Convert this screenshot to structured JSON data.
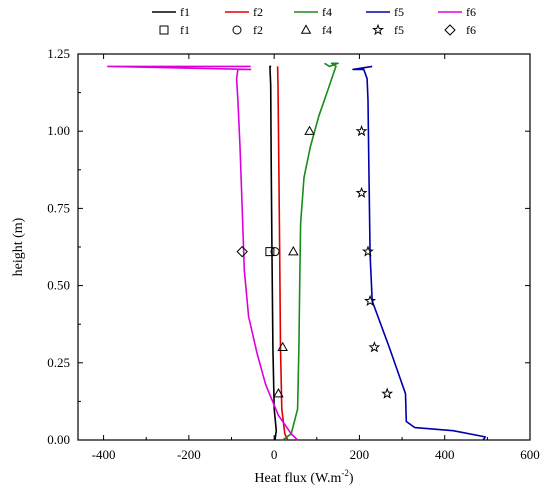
{
  "chart_data": {
    "type": "line",
    "xlabel": "Heat flux (W.m",
    "xlabel_superscript": "-2",
    "xlabel_suffix": ")",
    "ylabel": "height (m)",
    "xlim": [
      -460,
      600
    ],
    "ylim": [
      0,
      1.25
    ],
    "x_ticks": [
      -400,
      -200,
      0,
      200,
      400,
      600
    ],
    "x_tick_labels": [
      "-400",
      "-200",
      "0",
      "200",
      "400",
      "600"
    ],
    "y_ticks": [
      0,
      0.25,
      0.5,
      0.75,
      1.0,
      1.25
    ],
    "y_tick_labels": [
      "0.00",
      "0.25",
      "0.50",
      "0.75",
      "1.00",
      "1.25"
    ],
    "grid": false,
    "legend_placement": "top",
    "line_series": [
      {
        "name": "f1",
        "color": "#000000",
        "points": [
          [
            2,
            0
          ],
          [
            5,
            0.03
          ],
          [
            0,
            0.1
          ],
          [
            -3,
            0.3
          ],
          [
            -5,
            0.6
          ],
          [
            -7,
            0.9
          ],
          [
            -8,
            1.15
          ],
          [
            -10,
            1.21
          ],
          [
            -7,
            1.21
          ]
        ]
      },
      {
        "name": "f2",
        "color": "#dd0000",
        "points": [
          [
            32,
            0
          ],
          [
            25,
            0.02
          ],
          [
            18,
            0.1
          ],
          [
            15,
            0.3
          ],
          [
            13,
            0.6
          ],
          [
            11,
            0.9
          ],
          [
            9,
            1.15
          ],
          [
            8,
            1.21
          ]
        ]
      },
      {
        "name": "f4",
        "color": "#1a8a1a",
        "points": [
          [
            20,
            0.0
          ],
          [
            40,
            0.02
          ],
          [
            55,
            0.1
          ],
          [
            58,
            0.3
          ],
          [
            60,
            0.5
          ],
          [
            62,
            0.7
          ],
          [
            70,
            0.85
          ],
          [
            85,
            0.95
          ],
          [
            105,
            1.05
          ],
          [
            125,
            1.13
          ],
          [
            140,
            1.19
          ],
          [
            145,
            1.21
          ],
          [
            135,
            1.22
          ],
          [
            150,
            1.22
          ],
          [
            130,
            1.21
          ],
          [
            118,
            1.22
          ]
        ]
      },
      {
        "name": "f5",
        "color": "#0000aa",
        "points": [
          [
            490,
            0.0
          ],
          [
            495,
            0.01
          ],
          [
            420,
            0.03
          ],
          [
            330,
            0.04
          ],
          [
            310,
            0.06
          ],
          [
            308,
            0.15
          ],
          [
            270,
            0.3
          ],
          [
            230,
            0.45
          ],
          [
            225,
            0.6
          ],
          [
            222,
            0.9
          ],
          [
            220,
            1.1
          ],
          [
            218,
            1.17
          ],
          [
            210,
            1.2
          ],
          [
            185,
            1.2
          ],
          [
            230,
            1.21
          ]
        ]
      },
      {
        "name": "f6",
        "color": "#dd00dd",
        "points": [
          [
            55,
            0.0
          ],
          [
            40,
            0.02
          ],
          [
            10,
            0.08
          ],
          [
            -20,
            0.18
          ],
          [
            -40,
            0.28
          ],
          [
            -60,
            0.4
          ],
          [
            -70,
            0.55
          ],
          [
            -75,
            0.75
          ],
          [
            -80,
            0.95
          ],
          [
            -85,
            1.1
          ],
          [
            -88,
            1.17
          ],
          [
            -85,
            1.2
          ],
          [
            -55,
            1.2
          ],
          [
            -390,
            1.21
          ],
          [
            -55,
            1.21
          ]
        ]
      }
    ],
    "marker_series": [
      {
        "name": "f1",
        "marker": "square",
        "points": [
          [
            -10,
            0.61
          ]
        ]
      },
      {
        "name": "f2",
        "marker": "circle",
        "points": [
          [
            2,
            0.61
          ]
        ]
      },
      {
        "name": "f4",
        "marker": "triangle",
        "points": [
          [
            83,
            1.0
          ],
          [
            45,
            0.61
          ],
          [
            20,
            0.3
          ],
          [
            10,
            0.15
          ]
        ]
      },
      {
        "name": "f5",
        "marker": "star",
        "points": [
          [
            205,
            1.0
          ],
          [
            205,
            0.8
          ],
          [
            220,
            0.61
          ],
          [
            225,
            0.45
          ],
          [
            235,
            0.3
          ],
          [
            265,
            0.15
          ]
        ]
      },
      {
        "name": "f6",
        "marker": "diamond",
        "points": [
          [
            -75,
            0.61
          ]
        ]
      }
    ]
  }
}
